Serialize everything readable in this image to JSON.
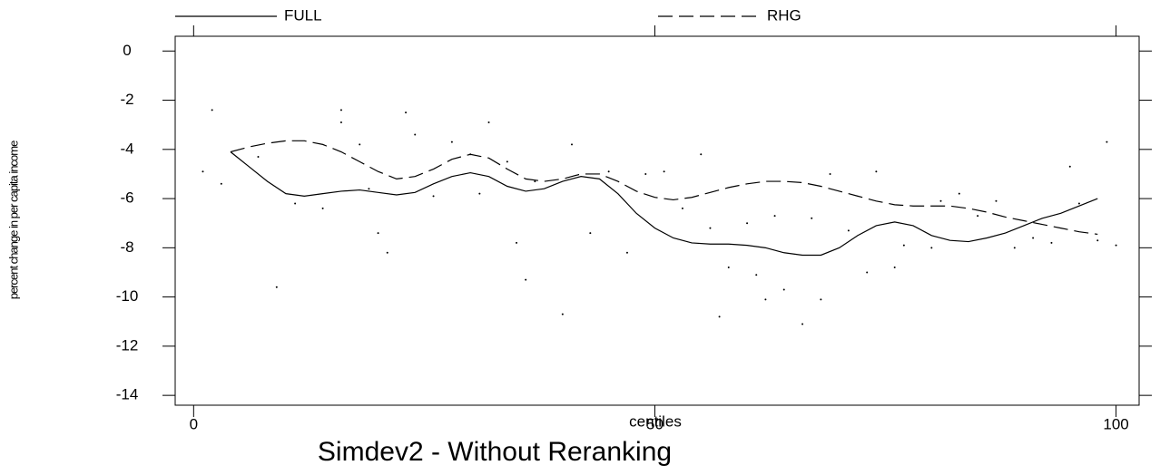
{
  "chart_data": {
    "type": "line",
    "title": "Simdev2 - Without Reranking",
    "x_label": "centiles",
    "y_label": "percent change in per capita income",
    "xlim": [
      -2,
      102.5
    ],
    "ylim": [
      -14.4,
      0.6
    ],
    "xticks": [
      0,
      50,
      100
    ],
    "yticks": [
      0,
      -2,
      -4,
      -6,
      -8,
      -10,
      -12,
      -14
    ],
    "x": [
      4,
      6,
      8,
      10,
      12,
      14,
      16,
      18,
      20,
      22,
      24,
      26,
      28,
      30,
      32,
      34,
      36,
      38,
      40,
      42,
      44,
      46,
      48,
      50,
      52,
      54,
      56,
      58,
      60,
      62,
      64,
      66,
      68,
      70,
      72,
      74,
      76,
      78,
      80,
      82,
      84,
      86,
      88,
      90,
      92,
      94,
      96,
      98
    ],
    "series": [
      {
        "name": "FULL",
        "color": "#000000",
        "dash": "solid",
        "values": [
          -4.1,
          -4.7,
          -5.3,
          -5.8,
          -5.9,
          -5.8,
          -5.7,
          -5.65,
          -5.75,
          -5.85,
          -5.75,
          -5.4,
          -5.1,
          -4.95,
          -5.1,
          -5.5,
          -5.7,
          -5.6,
          -5.3,
          -5.1,
          -5.2,
          -5.8,
          -6.6,
          -7.2,
          -7.6,
          -7.8,
          -7.85,
          -7.85,
          -7.9,
          -8.0,
          -8.2,
          -8.3,
          -8.3,
          -8.0,
          -7.5,
          -7.1,
          -6.95,
          -7.1,
          -7.5,
          -7.7,
          -7.75,
          -7.6,
          -7.4,
          -7.1,
          -6.8,
          -6.6,
          -6.3,
          -6.0
        ]
      },
      {
        "name": "RHG",
        "color": "#000000",
        "dash": "dashed",
        "values": [
          -4.1,
          -3.9,
          -3.75,
          -3.65,
          -3.65,
          -3.8,
          -4.1,
          -4.5,
          -4.9,
          -5.2,
          -5.1,
          -4.8,
          -4.4,
          -4.2,
          -4.35,
          -4.8,
          -5.2,
          -5.3,
          -5.2,
          -5.0,
          -5.0,
          -5.3,
          -5.7,
          -5.95,
          -6.05,
          -5.95,
          -5.75,
          -5.55,
          -5.4,
          -5.3,
          -5.3,
          -5.35,
          -5.5,
          -5.7,
          -5.9,
          -6.1,
          -6.25,
          -6.3,
          -6.3,
          -6.3,
          -6.4,
          -6.55,
          -6.75,
          -6.9,
          -7.05,
          -7.2,
          -7.35,
          -7.45
        ]
      }
    ],
    "points": {
      "color": "#000000",
      "x": [
        2,
        1,
        3,
        7,
        9,
        11,
        14,
        16,
        16,
        18,
        19,
        20,
        21,
        23,
        24,
        26,
        28,
        30,
        31,
        32,
        34,
        35,
        36,
        37,
        40,
        41,
        43,
        45,
        47,
        49,
        51,
        53,
        55,
        56,
        57,
        58,
        60,
        61,
        62,
        63,
        64,
        66,
        67,
        68,
        69,
        71,
        73,
        74,
        76,
        77,
        80,
        81,
        83,
        85,
        87,
        89,
        91,
        93,
        95,
        96,
        98,
        99,
        100
      ],
      "y": [
        -2.4,
        -4.9,
        -5.4,
        -4.3,
        -9.6,
        -6.2,
        -6.4,
        -2.4,
        -2.9,
        -3.8,
        -5.6,
        -7.4,
        -8.2,
        -2.5,
        -3.4,
        -5.9,
        -3.7,
        -4.2,
        -5.8,
        -2.9,
        -4.5,
        -7.8,
        -9.3,
        -5.3,
        -10.7,
        -3.8,
        -7.4,
        -4.9,
        -8.2,
        -5.0,
        -4.9,
        -6.4,
        -4.2,
        -7.2,
        -10.8,
        -8.8,
        -7.0,
        -9.1,
        -10.1,
        -6.7,
        -9.7,
        -11.1,
        -6.8,
        -10.1,
        -5.0,
        -7.3,
        -9.0,
        -4.9,
        -8.8,
        -7.9,
        -8.0,
        -6.1,
        -5.8,
        -6.7,
        -6.1,
        -8.0,
        -7.6,
        -7.8,
        -4.7,
        -6.2,
        -7.7,
        -3.7,
        -7.9
      ]
    }
  }
}
